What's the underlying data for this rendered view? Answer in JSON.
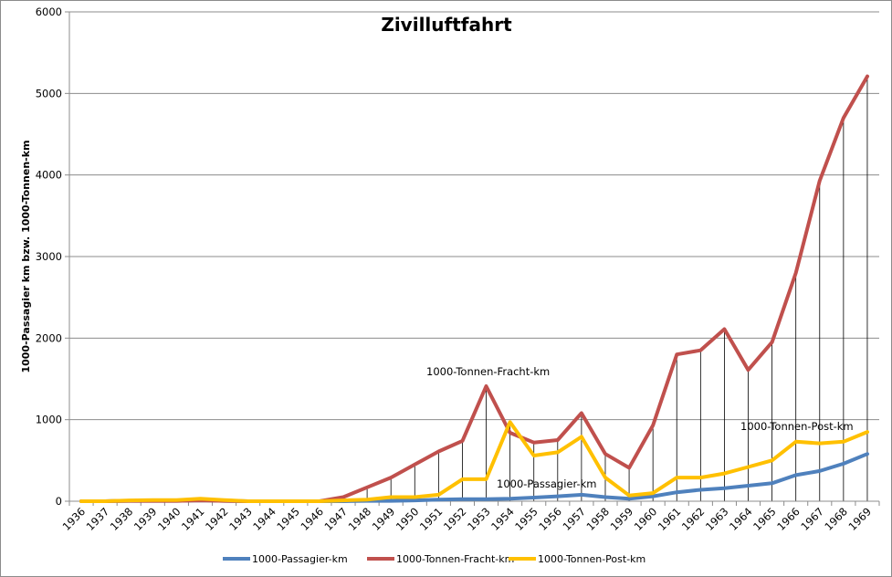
{
  "chart_data": {
    "type": "line",
    "title": "Zivilluftfahrt",
    "xlabel": "",
    "ylabel": "1000-Passagier km bzw. 1000-Tonnen-km",
    "ylim": [
      0,
      6000
    ],
    "yticks": [
      "0",
      "1000",
      "2000",
      "3000",
      "4000",
      "5000",
      "6000"
    ],
    "grid": true,
    "legend_position": "bottom",
    "categories": [
      "1936",
      "1937",
      "1938",
      "1939",
      "1940",
      "1941",
      "1942",
      "1943",
      "1944",
      "1945",
      "1946",
      "1947",
      "1948",
      "1949",
      "1950",
      "1951",
      "1952",
      "1953",
      "1954",
      "1955",
      "1956",
      "1957",
      "1958",
      "1959",
      "1960",
      "1961",
      "1962",
      "1963",
      "1964",
      "1965",
      "1966",
      "1967",
      "1968",
      "1969"
    ],
    "series": [
      {
        "name": "1000-Passagier-km",
        "color": "#4f81bd",
        "values": [
          0,
          0,
          5,
          5,
          5,
          10,
          5,
          0,
          0,
          0,
          0,
          0,
          5,
          5,
          10,
          20,
          25,
          25,
          30,
          45,
          60,
          80,
          50,
          30,
          60,
          110,
          140,
          160,
          190,
          220,
          320,
          370,
          460,
          580
        ]
      },
      {
        "name": "1000-Tonnen-Fracht-km",
        "color": "#c0504d",
        "values": [
          0,
          0,
          5,
          5,
          5,
          10,
          5,
          0,
          0,
          0,
          0,
          50,
          170,
          290,
          450,
          610,
          740,
          1410,
          840,
          720,
          750,
          1080,
          580,
          410,
          930,
          1800,
          1850,
          2110,
          1610,
          1950,
          2800,
          3930,
          4700,
          5210
        ]
      },
      {
        "name": "1000-Tonnen-Post-km",
        "color": "#ffc000",
        "values": [
          0,
          0,
          10,
          15,
          15,
          30,
          15,
          0,
          0,
          0,
          0,
          10,
          20,
          50,
          50,
          80,
          270,
          270,
          970,
          560,
          600,
          790,
          290,
          70,
          100,
          290,
          290,
          340,
          420,
          500,
          730,
          710,
          730,
          850
        ]
      }
    ],
    "annotations": [
      {
        "text": "1000-Tonnen-Fracht-km"
      },
      {
        "text": "1000-Passagier-km"
      },
      {
        "text": "1000-Tonnen-Post-km"
      }
    ]
  }
}
